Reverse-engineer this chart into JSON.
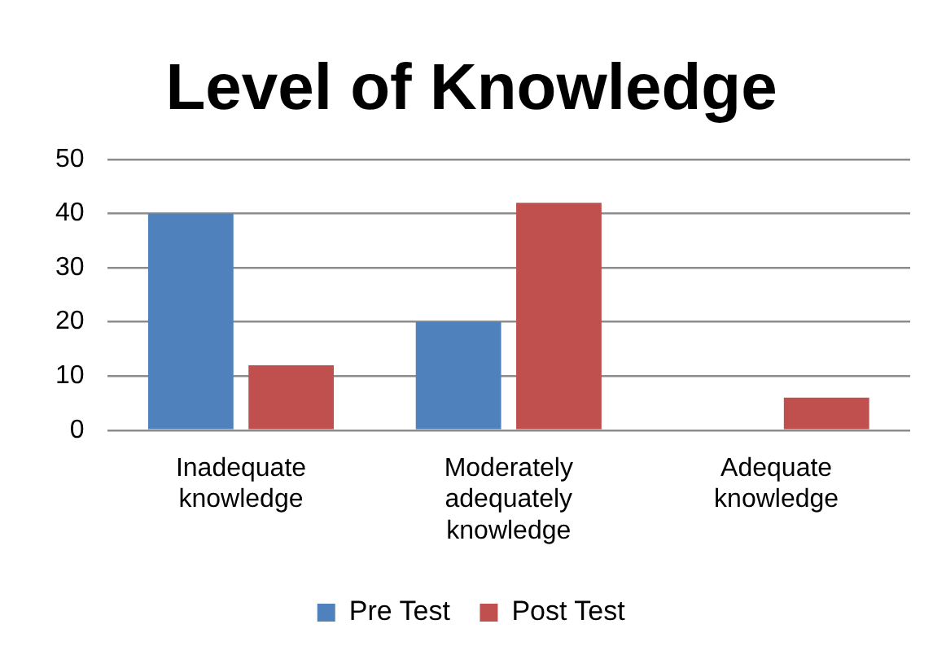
{
  "chart_data": {
    "type": "bar",
    "title": "Level of Knowledge",
    "categories": [
      "Inadequate knowledge",
      "Moderately adequately knowledge",
      "Adequate knowledge"
    ],
    "series": [
      {
        "name": "Pre Test",
        "color": "#4f81bd",
        "values": [
          40,
          20,
          0
        ]
      },
      {
        "name": "Post Test",
        "color": "#c0504d",
        "values": [
          12,
          42,
          6
        ]
      }
    ],
    "ylim": [
      0,
      50
    ],
    "yticks": [
      0,
      10,
      20,
      30,
      40,
      50
    ],
    "grid": "y",
    "legend": "bottom"
  }
}
